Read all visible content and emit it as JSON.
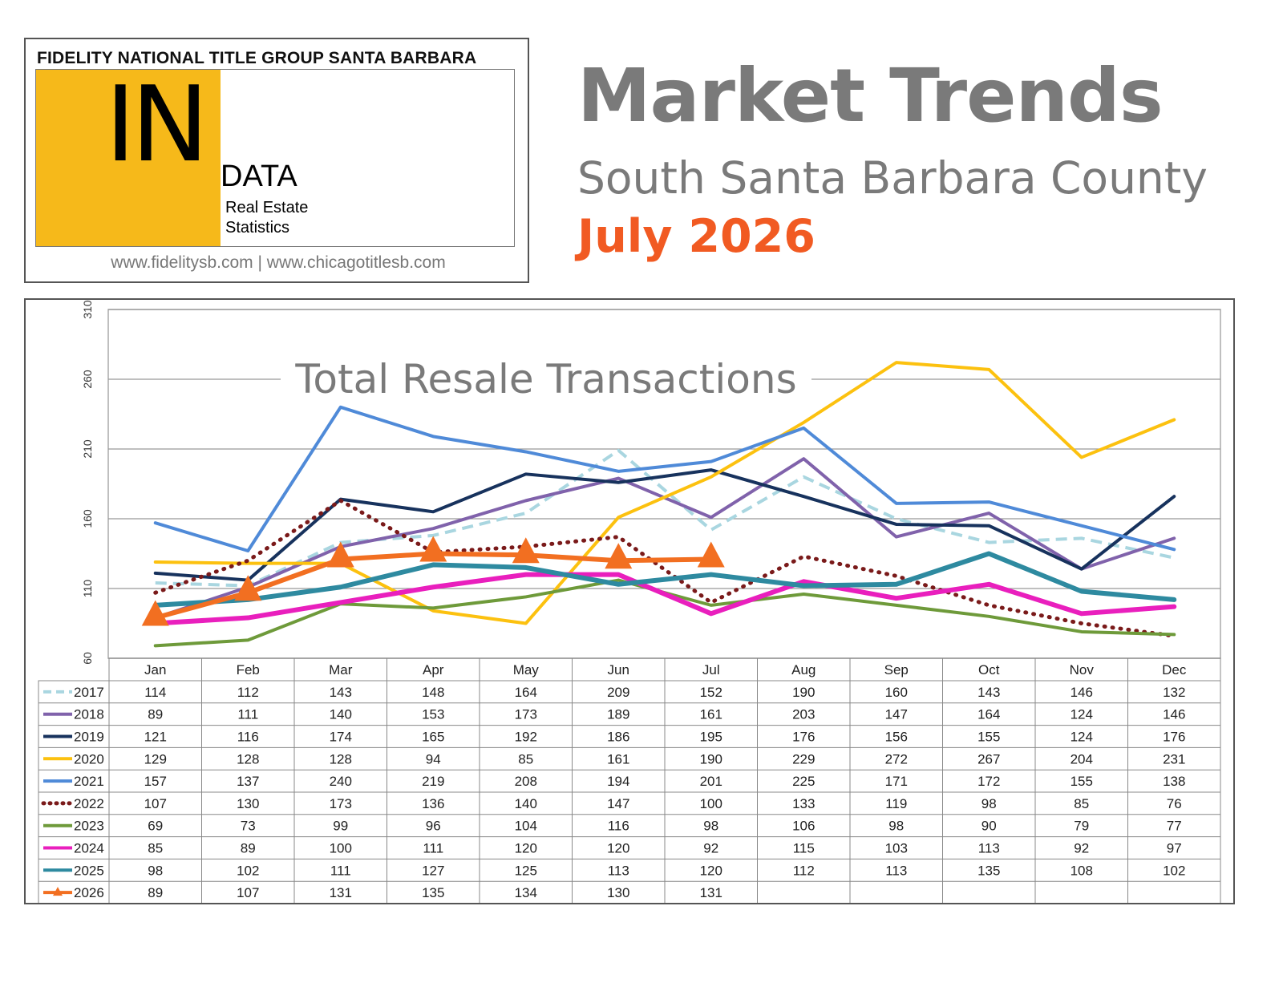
{
  "logo": {
    "company": "FIDELITY NATIONAL TITLE GROUP SANTA BARBARA",
    "in": "IN",
    "data": "DATA",
    "sub1": "Real Estate",
    "sub2": "Statistics",
    "urls": "www.fidelitysb.com | www.chicagotitlesb.com",
    "accent_color": "#f6b91a"
  },
  "header": {
    "title": "Market Trends",
    "region": "South Santa Barbara County",
    "date": "July 2026",
    "date_color": "#f15a22"
  },
  "chart_data": {
    "type": "line",
    "title": "Total Resale Transactions",
    "xlabel": "",
    "ylabel": "",
    "ylim": [
      60,
      310
    ],
    "yticks": [
      60,
      110,
      160,
      210,
      260,
      310
    ],
    "grid": true,
    "legend_placement": "table-below",
    "categories": [
      "Jan",
      "Feb",
      "Mar",
      "Apr",
      "May",
      "Jun",
      "Jul",
      "Aug",
      "Sep",
      "Oct",
      "Nov",
      "Dec"
    ],
    "series": [
      {
        "name": "2017",
        "color": "#a9d6e0",
        "style": "dashed",
        "values": [
          114,
          112,
          143,
          148,
          164,
          209,
          152,
          190,
          160,
          143,
          146,
          132
        ]
      },
      {
        "name": "2018",
        "color": "#8062ab",
        "style": "solid",
        "values": [
          89,
          111,
          140,
          153,
          173,
          189,
          161,
          203,
          147,
          164,
          124,
          146
        ]
      },
      {
        "name": "2019",
        "color": "#17325d",
        "style": "solid",
        "values": [
          121,
          116,
          174,
          165,
          192,
          186,
          195,
          176,
          156,
          155,
          124,
          176
        ]
      },
      {
        "name": "2020",
        "color": "#fcc10f",
        "style": "solid",
        "values": [
          129,
          128,
          128,
          94,
          85,
          161,
          190,
          229,
          272,
          267,
          204,
          231
        ]
      },
      {
        "name": "2021",
        "color": "#4f8ad8",
        "style": "solid",
        "values": [
          157,
          137,
          240,
          219,
          208,
          194,
          201,
          225,
          171,
          172,
          155,
          138
        ]
      },
      {
        "name": "2022",
        "color": "#7a1a1a",
        "style": "dotted",
        "values": [
          107,
          130,
          173,
          136,
          140,
          147,
          100,
          133,
          119,
          98,
          85,
          76
        ]
      },
      {
        "name": "2023",
        "color": "#6e9a3a",
        "style": "solid",
        "values": [
          69,
          73,
          99,
          96,
          104,
          116,
          98,
          106,
          98,
          90,
          79,
          77
        ]
      },
      {
        "name": "2024",
        "color": "#e91fbd",
        "style": "solid",
        "values": [
          85,
          89,
          100,
          111,
          120,
          120,
          92,
          115,
          103,
          113,
          92,
          97
        ]
      },
      {
        "name": "2025",
        "color": "#2e8aa0",
        "style": "solid",
        "values": [
          98,
          102,
          111,
          127,
          125,
          113,
          120,
          112,
          113,
          135,
          108,
          102
        ]
      },
      {
        "name": "2026",
        "color": "#f26f21",
        "style": "triangle",
        "values": [
          89,
          107,
          131,
          135,
          134,
          130,
          131,
          null,
          null,
          null,
          null,
          null
        ]
      }
    ]
  }
}
